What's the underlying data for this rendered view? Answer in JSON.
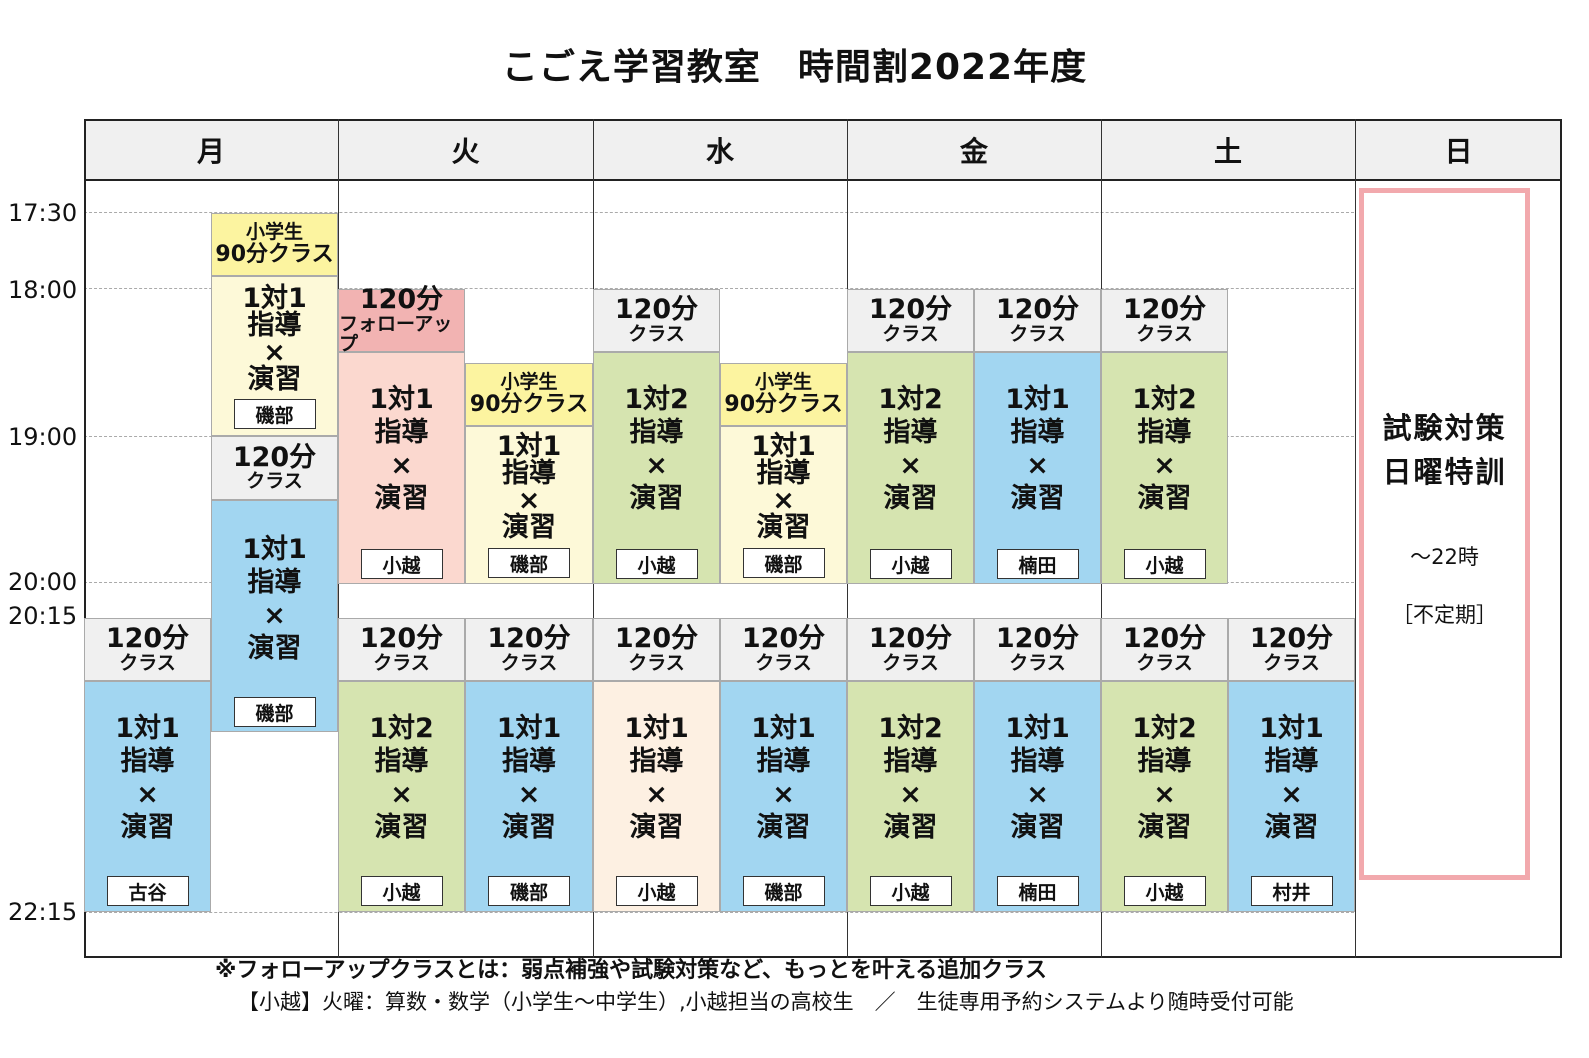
{
  "title": "こごえ学習教室　時間割2022年度",
  "days": [
    "月",
    "火",
    "水",
    "金",
    "土",
    "日"
  ],
  "time_labels": [
    "17:30",
    "18:00",
    "19:00",
    "20:00",
    "20:15",
    "22:15"
  ],
  "class_types": {
    "elementary_90_line1": "小学生",
    "elementary_90_line2": "90分クラス",
    "min120": "120分",
    "class": "クラス",
    "followup": "フォローアップ",
    "one_on_one": [
      "1対1",
      "指導",
      "×",
      "演習"
    ],
    "one_on_two": [
      "1対2",
      "指導",
      "×",
      "演習"
    ]
  },
  "colors": {
    "header_gray": "#f0f0f0",
    "elementary_yellow": "#fdf9d8",
    "elementary_label_yellow": "#fcf4a0",
    "followup_label_pink": "#f2b3b2",
    "followup_body_pink": "#fbd8cf",
    "green": "#d6e4b0",
    "blue": "#a2d6f1",
    "peach": "#fdf0e2",
    "sunday_border": "#f2a9ad"
  },
  "blocks": [
    {
      "kind": "elem90",
      "top": "小学生",
      "top2": "90分クラス",
      "body": [
        "1対1",
        "指導",
        "×",
        "演習"
      ],
      "teacher": "磯部",
      "color": "elementary_yellow"
    },
    {
      "kind": "min120",
      "head": "120分",
      "head2": "クラス",
      "body": [
        "1対1",
        "指導",
        "×",
        "演習"
      ],
      "teacher": "磯部",
      "color": "blue"
    },
    {
      "kind": "min120",
      "head": "120分",
      "head2": "クラス",
      "body": [
        "1対1",
        "指導",
        "×",
        "演習"
      ],
      "teacher": "古谷",
      "color": "blue"
    },
    {
      "kind": "followup",
      "head": "120分",
      "head2": "フォローアップ",
      "body": [
        "1対1",
        "指導",
        "×",
        "演習"
      ],
      "teacher": "小越",
      "color": "followup_body_pink"
    },
    {
      "kind": "elem90",
      "top": "小学生",
      "top2": "90分クラス",
      "body": [
        "1対1",
        "指導",
        "×",
        "演習"
      ],
      "teacher": "磯部",
      "color": "elementary_yellow"
    },
    {
      "kind": "min120",
      "head": "120分",
      "head2": "クラス",
      "body": [
        "1対2",
        "指導",
        "×",
        "演習"
      ],
      "teacher": "小越",
      "color": "green"
    },
    {
      "kind": "min120",
      "head": "120分",
      "head2": "クラス",
      "body": [
        "1対1",
        "指導",
        "×",
        "演習"
      ],
      "teacher": "磯部",
      "color": "blue"
    },
    {
      "kind": "min120",
      "head": "120分",
      "head2": "クラス",
      "body": [
        "1対2",
        "指導",
        "×",
        "演習"
      ],
      "teacher": "小越",
      "color": "green"
    },
    {
      "kind": "elem90",
      "top": "小学生",
      "top2": "90分クラス",
      "body": [
        "1対1",
        "指導",
        "×",
        "演習"
      ],
      "teacher": "磯部",
      "color": "elementary_yellow"
    },
    {
      "kind": "min120",
      "head": "120分",
      "head2": "クラス",
      "body": [
        "1対1",
        "指導",
        "×",
        "演習"
      ],
      "teacher": "小越",
      "color": "peach"
    },
    {
      "kind": "min120",
      "head": "120分",
      "head2": "クラス",
      "body": [
        "1対1",
        "指導",
        "×",
        "演習"
      ],
      "teacher": "磯部",
      "color": "blue"
    },
    {
      "kind": "min120",
      "head": "120分",
      "head2": "クラス",
      "body": [
        "1対2",
        "指導",
        "×",
        "演習"
      ],
      "teacher": "小越",
      "color": "green"
    },
    {
      "kind": "min120",
      "head": "120分",
      "head2": "クラス",
      "body": [
        "1対1",
        "指導",
        "×",
        "演習"
      ],
      "teacher": "楠田",
      "color": "blue"
    },
    {
      "kind": "min120",
      "head": "120分",
      "head2": "クラス",
      "body": [
        "1対2",
        "指導",
        "×",
        "演習"
      ],
      "teacher": "小越",
      "color": "green"
    },
    {
      "kind": "min120",
      "head": "120分",
      "head2": "クラス",
      "body": [
        "1対1",
        "指導",
        "×",
        "演習"
      ],
      "teacher": "楠田",
      "color": "blue"
    },
    {
      "kind": "min120",
      "head": "120分",
      "head2": "クラス",
      "body": [
        "1対2",
        "指導",
        "×",
        "演習"
      ],
      "teacher": "小越",
      "color": "green"
    },
    {
      "kind": "min120",
      "head": "120分",
      "head2": "クラス",
      "body": [
        "1対2",
        "指導",
        "×",
        "演習"
      ],
      "teacher": "小越",
      "color": "green"
    },
    {
      "kind": "min120",
      "head": "120分",
      "head2": "クラス",
      "body": [
        "1対1",
        "指導",
        "×",
        "演習"
      ],
      "teacher": "村井",
      "color": "blue"
    }
  ],
  "sunday": {
    "line1": "試験対策",
    "line2": "日曜特訓",
    "until": "～22時",
    "irregular": "［不定期］"
  },
  "footnote": "※フォローアップクラスとは：弱点補強や試験対策など、もっとを叶える追加クラス",
  "subnote": "【小越】火曜：算数・数学（小学生～中学生）,小越担当の高校生　／　生徒専用予約システムより随時受付可能"
}
